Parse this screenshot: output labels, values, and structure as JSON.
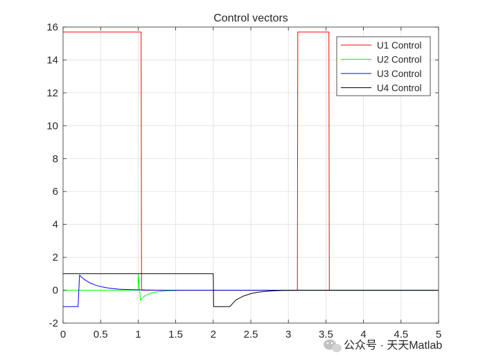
{
  "chart_data": {
    "type": "line",
    "title": "Control vectors",
    "xlabel": "",
    "ylabel": "",
    "xlim": [
      0,
      5
    ],
    "ylim": [
      -2,
      16
    ],
    "xticks": [
      0,
      0.5,
      1,
      1.5,
      2,
      2.5,
      3,
      3.5,
      4,
      4.5,
      5
    ],
    "yticks": [
      -2,
      0,
      2,
      4,
      6,
      8,
      10,
      12,
      14,
      16
    ],
    "grid": true,
    "legend": "top-right",
    "series": [
      {
        "name": "U1 Control",
        "color": "#ff0000",
        "x": [
          0,
          1.04,
          1.045,
          1.06,
          3.12,
          3.125,
          3.54,
          3.545,
          5
        ],
        "y": [
          15.7,
          15.7,
          0,
          0,
          0,
          15.7,
          15.7,
          0,
          0
        ]
      },
      {
        "name": "U2 Control",
        "color": "#00ff00",
        "x": [
          0,
          1.0,
          1.0,
          1.02,
          1.03,
          1.05,
          1.08,
          1.12,
          1.17,
          1.24,
          1.32,
          1.42,
          1.55,
          1.7,
          1.85,
          2.0,
          5
        ],
        "y": [
          0,
          0,
          1.0,
          0,
          -0.62,
          -0.5,
          -0.38,
          -0.27,
          -0.18,
          -0.11,
          -0.06,
          -0.03,
          -0.01,
          0,
          0,
          0,
          0
        ]
      },
      {
        "name": "U3 Control",
        "color": "#0000ff",
        "x": [
          0,
          0.2,
          0.22,
          0.25,
          0.3,
          0.36,
          0.43,
          0.52,
          0.62,
          0.75,
          0.9,
          1.1,
          1.3,
          1.55,
          1.8,
          5
        ],
        "y": [
          -1.0,
          -1.0,
          0.92,
          0.78,
          0.6,
          0.44,
          0.31,
          0.2,
          0.12,
          0.06,
          0.03,
          0.01,
          0,
          0,
          0,
          0
        ]
      },
      {
        "name": "U4 Control",
        "color": "#000000",
        "x": [
          0,
          2.0,
          2.005,
          2.22,
          2.3,
          2.4,
          2.5,
          2.6,
          2.7,
          2.8,
          2.9,
          3.0,
          3.2,
          5
        ],
        "y": [
          1.0,
          1.0,
          -1.0,
          -1.0,
          -0.6,
          -0.36,
          -0.21,
          -0.12,
          -0.07,
          -0.04,
          -0.02,
          -0.01,
          0,
          0
        ]
      }
    ]
  },
  "watermark": {
    "icon": "wechat-icon",
    "text": "公众号 · 天天Matlab"
  }
}
